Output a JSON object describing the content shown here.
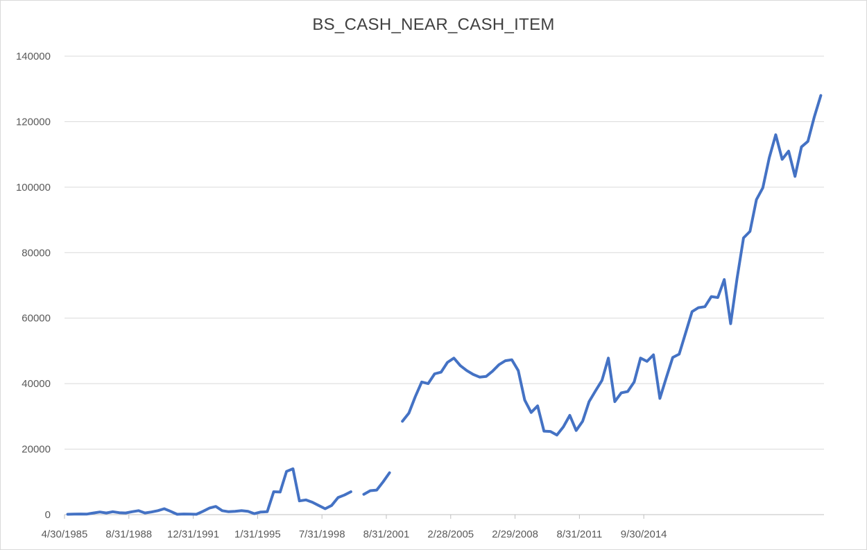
{
  "chart_data": {
    "type": "line",
    "title": "BS_CASH_NEAR_CASH_ITEM",
    "ylim": [
      0,
      140000
    ],
    "y_ticks": [
      0,
      20000,
      40000,
      60000,
      80000,
      100000,
      120000,
      140000
    ],
    "y_tick_labels": [
      "0",
      "20000",
      "40000",
      "60000",
      "80000",
      "100000",
      "120000",
      "140000"
    ],
    "x_tick_labels": [
      "4/30/1985",
      "8/31/1988",
      "12/31/1991",
      "1/31/1995",
      "7/31/1998",
      "8/31/2001",
      "2/28/2005",
      "2/29/2008",
      "8/31/2011",
      "9/30/2014"
    ],
    "x_tick_index": [
      0,
      10,
      20,
      30,
      40,
      50,
      60,
      70,
      80,
      90
    ],
    "grid": true,
    "line_color": "#4472c4",
    "series": [
      {
        "values": [
          100,
          150,
          200,
          180,
          500,
          800,
          500,
          900,
          600,
          500,
          900,
          1200,
          500,
          800,
          1200,
          1800,
          1000,
          100,
          200,
          150,
          100,
          1000,
          2000,
          2500,
          1200,
          900,
          1000,
          1200,
          1000,
          300,
          800,
          900,
          7000,
          6900,
          13200,
          14000,
          4200,
          4500,
          3800,
          2800,
          1800,
          2800,
          5200,
          6000,
          7000,
          null,
          6200,
          7300,
          7500,
          10000,
          12800,
          null,
          28500,
          31000,
          36000,
          40500,
          40000,
          43000,
          43500,
          46500,
          47800,
          45500,
          44000,
          42800,
          42000,
          42200,
          43800,
          45800,
          47000,
          47300,
          44000,
          35000,
          31200,
          33200,
          25500,
          25400,
          24300,
          26800,
          30300,
          25700,
          28500,
          34500,
          37800,
          41000,
          47800,
          34500,
          37200,
          37600,
          40500,
          47800,
          46800,
          48800,
          35500,
          41800,
          48000,
          49000,
          55500,
          62000,
          63200,
          63500,
          66600,
          66300,
          71800,
          58300,
          72200,
          84500,
          86500,
          96200,
          99800,
          109000,
          116000,
          108500,
          111000,
          103300,
          112300,
          114000,
          121500,
          128000
        ]
      }
    ]
  }
}
